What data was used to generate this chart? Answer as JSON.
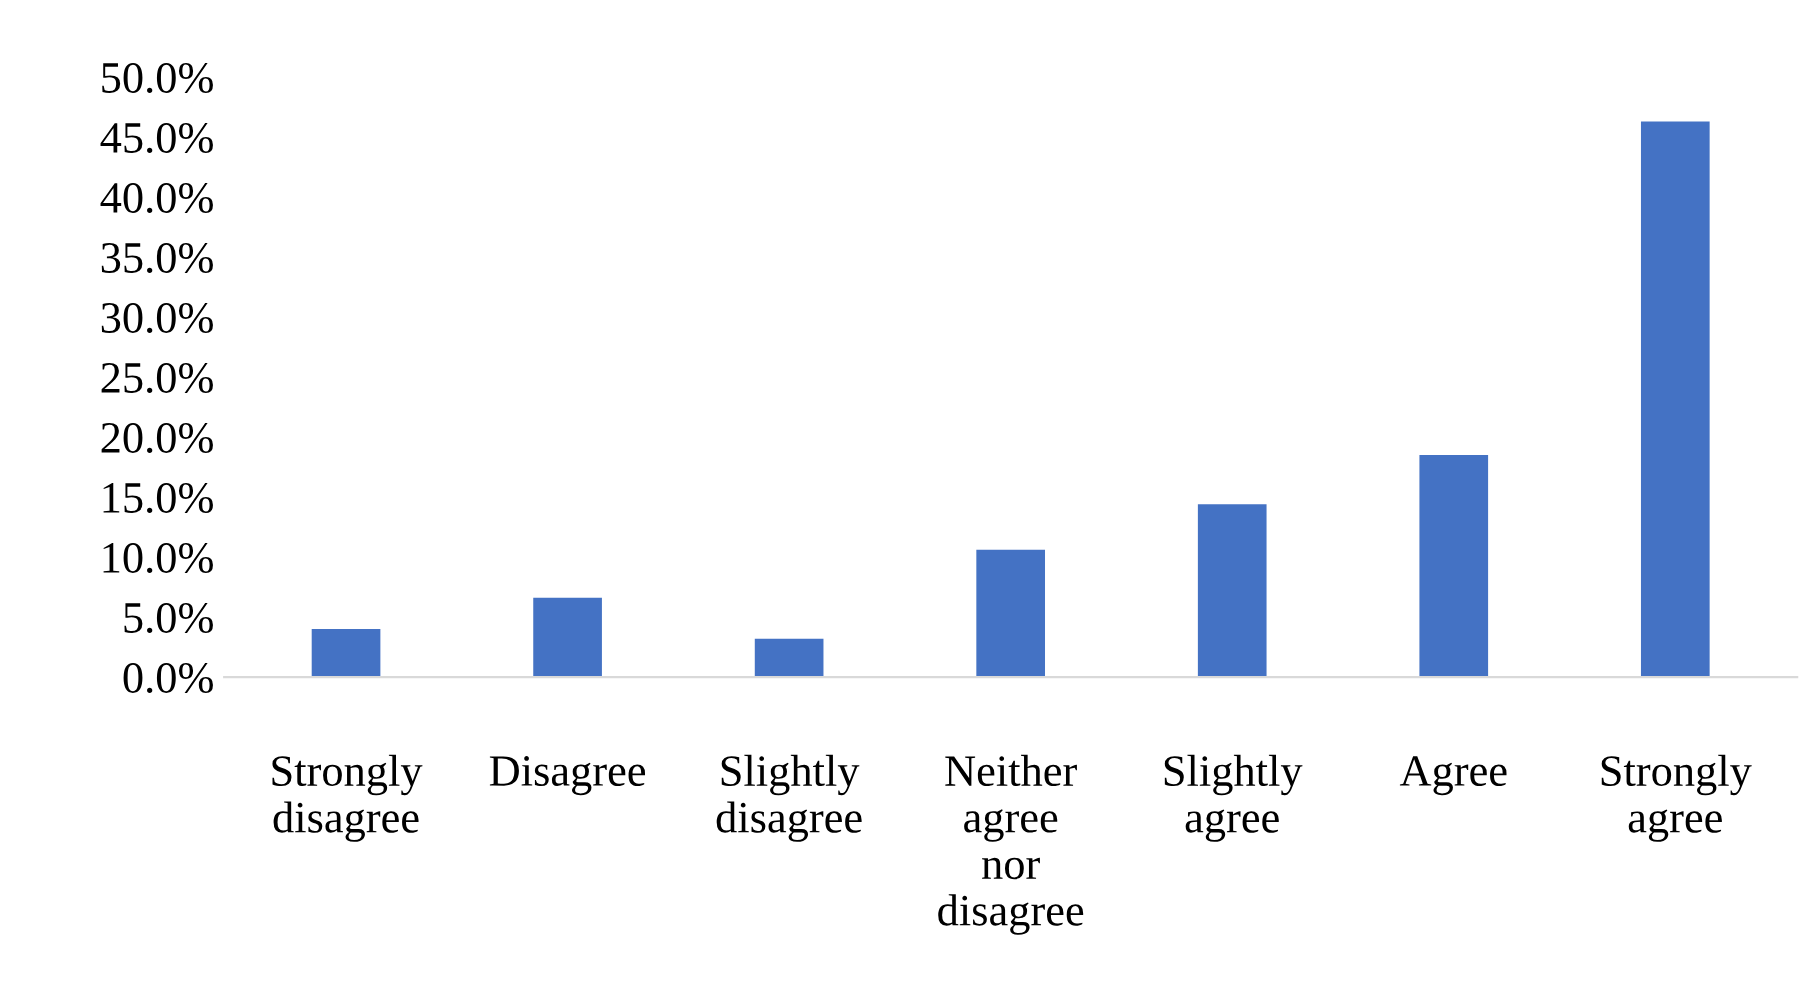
{
  "chart_data": {
    "type": "bar",
    "categories": [
      "Strongly disagree",
      "Disagree",
      "Slightly disagree",
      "Neither agree nor disagree",
      "Slightly agree",
      "Agree",
      "Strongly agree"
    ],
    "values": [
      4.0,
      6.6,
      3.2,
      10.6,
      14.4,
      18.5,
      46.3
    ],
    "color": "#4472c4",
    "ylim": [
      0,
      50
    ],
    "yticks": [
      {
        "value": 0,
        "label": "0.0%"
      },
      {
        "value": 5,
        "label": "5.0%"
      },
      {
        "value": 10,
        "label": "10.0%"
      },
      {
        "value": 15,
        "label": "15.0%"
      },
      {
        "value": 20,
        "label": "20.0%"
      },
      {
        "value": 25,
        "label": "25.0%"
      },
      {
        "value": 30,
        "label": "30.0%"
      },
      {
        "value": 35,
        "label": "35.0%"
      },
      {
        "value": 40,
        "label": "40.0%"
      },
      {
        "value": 45,
        "label": "45.0%"
      },
      {
        "value": 50,
        "label": "50.0%"
      }
    ],
    "grid": false,
    "legend": false
  }
}
